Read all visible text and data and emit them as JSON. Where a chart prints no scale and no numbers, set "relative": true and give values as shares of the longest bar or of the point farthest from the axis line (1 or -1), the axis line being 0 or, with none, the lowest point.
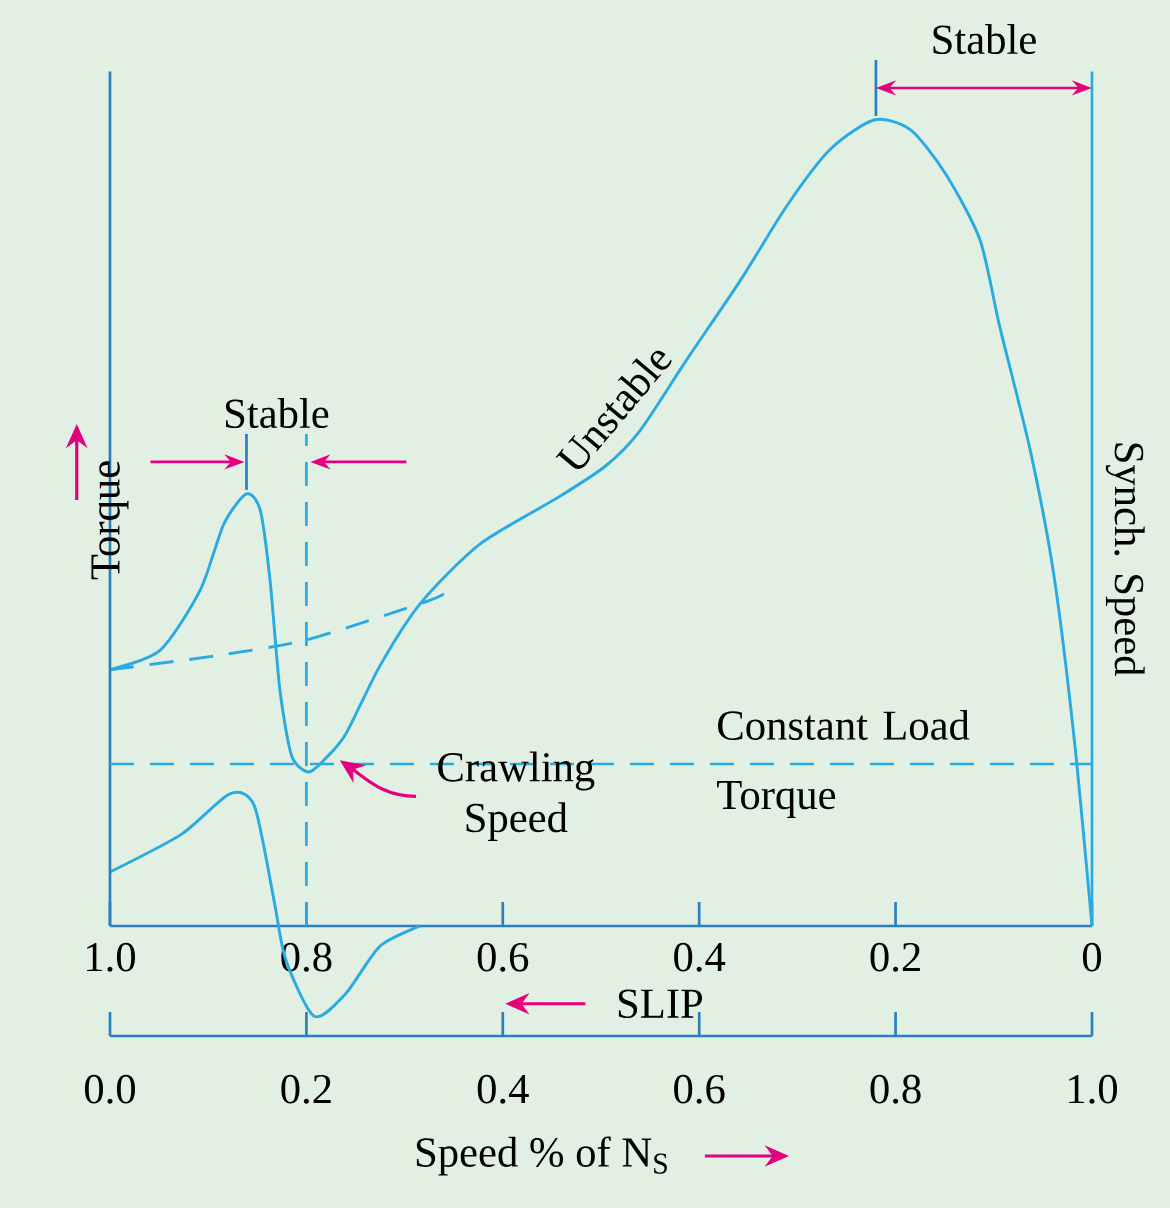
{
  "chart_data": {
    "type": "line",
    "relative": true,
    "xlabel": "SLIP",
    "ylabel": "Torque",
    "x2label": "Speed % of N$_{S}$",
    "xlim": [
      1,
      0
    ],
    "xticks": [
      {
        "value": 1,
        "label": "1.0"
      },
      0.8,
      0.6,
      0.4,
      0.2,
      0
    ],
    "x2lim": [
      0,
      1
    ],
    "x2ticks": [
      {
        "value": 0,
        "label": "0.0"
      },
      0.2,
      0.4,
      0.6,
      0.8,
      {
        "value": 1,
        "label": "1.0"
      }
    ],
    "series": [
      {
        "color": "#29abe2",
        "line_style": "solid",
        "x": [
          1.0,
          0.949,
          0.908,
          0.884,
          0.861,
          0.847,
          0.837,
          0.827,
          0.815,
          0.798,
          0.782,
          0.76,
          0.725,
          0.684,
          0.623,
          0.542,
          0.495,
          0.46,
          0.413,
          0.358,
          0.311,
          0.267,
          0.222,
          0.185,
          0.149,
          0.114,
          0.094,
          0.063,
          0.039,
          0.018,
          0
        ],
        "values": [
          0.318,
          0.342,
          0.417,
          0.499,
          0.536,
          0.516,
          0.429,
          0.293,
          0.211,
          0.191,
          0.206,
          0.238,
          0.323,
          0.4,
          0.474,
          0.533,
          0.571,
          0.615,
          0.702,
          0.801,
          0.893,
          0.963,
          1.0,
          0.988,
          0.933,
          0.851,
          0.744,
          0.591,
          0.437,
          0.231,
          0
        ]
      },
      {
        "color": "#29abe2",
        "line_style": "dashed",
        "x": [
          1.0,
          0.894,
          0.8,
          0.684,
          0.66
        ],
        "values": [
          0.318,
          0.335,
          0.355,
          0.4,
          0.412
        ]
      },
      {
        "color": "#29abe2",
        "line_style": "solid",
        "x": [
          1.0,
          0.927,
          0.878,
          0.853,
          0.833,
          0.821,
          0.792,
          0.76,
          0.725,
          0.684
        ],
        "values": [
          0.067,
          0.114,
          0.164,
          0.149,
          0.032,
          -0.042,
          -0.112,
          -0.084,
          -0.025,
          0
        ]
      }
    ],
    "ref_lines": [
      {
        "axis": "y",
        "value": 0.201,
        "label": "Constant Load Torque",
        "line_style": "dashed",
        "color": "#29abe2"
      },
      {
        "axis": "x",
        "value": 0,
        "label": "Synch. Speed",
        "line_style": "solid",
        "color": "#29abe2"
      },
      {
        "axis": "x",
        "value": 0.8,
        "line_style": "dashed",
        "color": "#29abe2"
      }
    ],
    "annotations": [
      {
        "text": "Stable",
        "x": 0.22,
        "y": 1.0
      },
      {
        "text": "Stable",
        "x": 0.861,
        "y": 0.536
      },
      {
        "text": "Unstable",
        "x": 0.46,
        "y": 0.615
      },
      {
        "text": "Crawling Speed",
        "x": 0.77,
        "y": 0.213
      }
    ]
  }
}
